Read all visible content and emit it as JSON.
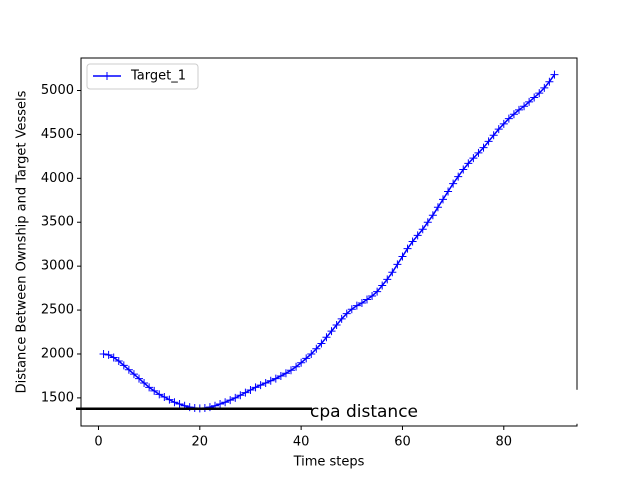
{
  "chart_data": {
    "type": "line",
    "x_label": "Time steps",
    "y_label": "Distance Between Ownship and Target Vessels",
    "x": [
      1,
      2,
      3,
      4,
      5,
      6,
      7,
      8,
      9,
      10,
      11,
      12,
      13,
      14,
      15,
      16,
      17,
      18,
      19,
      20,
      21,
      22,
      23,
      24,
      25,
      26,
      27,
      28,
      29,
      30,
      31,
      32,
      33,
      34,
      35,
      36,
      37,
      38,
      39,
      40,
      41,
      42,
      43,
      44,
      45,
      46,
      47,
      48,
      49,
      50,
      51,
      52,
      53,
      54,
      55,
      56,
      57,
      58,
      59,
      60,
      61,
      62,
      63,
      64,
      65,
      66,
      67,
      68,
      69,
      70,
      71,
      72,
      73,
      74,
      75,
      76,
      77,
      78,
      79,
      80,
      81,
      82,
      83,
      84,
      85,
      86,
      87,
      88,
      89,
      90
    ],
    "series": [
      {
        "name": "Target_1",
        "color": "#0000ff",
        "marker": "+",
        "values": [
          2000,
          1990,
          1960,
          1920,
          1870,
          1820,
          1770,
          1720,
          1670,
          1620,
          1580,
          1540,
          1510,
          1480,
          1450,
          1430,
          1410,
          1395,
          1385,
          1380,
          1385,
          1395,
          1410,
          1430,
          1450,
          1475,
          1500,
          1530,
          1560,
          1590,
          1620,
          1645,
          1670,
          1695,
          1720,
          1750,
          1780,
          1815,
          1855,
          1900,
          1950,
          2000,
          2060,
          2120,
          2190,
          2260,
          2330,
          2400,
          2460,
          2510,
          2550,
          2580,
          2620,
          2660,
          2710,
          2780,
          2850,
          2930,
          3020,
          3110,
          3200,
          3280,
          3350,
          3420,
          3500,
          3580,
          3670,
          3760,
          3850,
          3940,
          4020,
          4100,
          4170,
          4230,
          4290,
          4350,
          4420,
          4490,
          4560,
          4620,
          4680,
          4730,
          4780,
          4820,
          4870,
          4920,
          4970,
          5030,
          5100,
          5180
        ]
      }
    ],
    "xlim": [
      -3.45,
      94.45
    ],
    "xticks": [
      0,
      20,
      40,
      60,
      80
    ],
    "ylim": [
      1180,
      5370
    ],
    "yticks": [
      1500,
      2000,
      2500,
      3000,
      3500,
      4000,
      4500,
      5000
    ],
    "legend": "upper left",
    "annotations": [
      {
        "text": "cpa distance",
        "y": 1376,
        "color": "#000000"
      }
    ]
  }
}
